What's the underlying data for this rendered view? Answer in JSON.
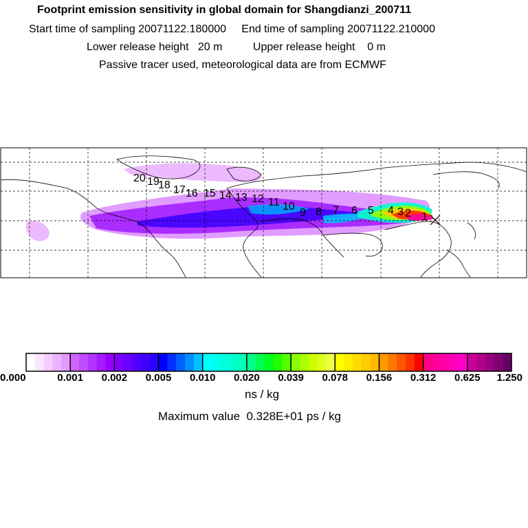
{
  "header": {
    "title": "Footprint emission sensitivity in global domain for Shangdianzi_200711",
    "start_label": "Start time of sampling",
    "start_value": "20071122.180000",
    "end_label": "End time of sampling",
    "end_value": "20071122.210000",
    "lower_label": "Lower release height",
    "lower_value": "20 m",
    "upper_label": "Upper release height",
    "upper_value": "0 m",
    "note": "Passive tracer used, meteorological data are from ECMWF"
  },
  "chart_data": {
    "type": "heatmap",
    "title": "Footprint emission sensitivity in global domain for Shangdianzi_200711",
    "colorbar": {
      "tick_labels": [
        "0.000",
        "0.001",
        "0.002",
        "0.005",
        "0.010",
        "0.020",
        "0.039",
        "0.078",
        "0.156",
        "0.312",
        "0.625",
        "1.250"
      ],
      "unit": "ns / kg",
      "colors": [
        "#ffffff",
        "#fbe6ff",
        "#f4ccff",
        "#ecb2ff",
        "#e499ff",
        "#cc66ff",
        "#c04cff",
        "#b333ff",
        "#a61aff",
        "#9900ff",
        "#7f00ff",
        "#6a00ff",
        "#5500ff",
        "#4000ff",
        "#2b00ff",
        "#0000ff",
        "#0030ff",
        "#0060ff",
        "#0090ff",
        "#00c0ff",
        "#00ffff",
        "#00ffee",
        "#00ffdd",
        "#00ffcc",
        "#00ffbb",
        "#00ff88",
        "#00ff55",
        "#00ff22",
        "#22ff00",
        "#55ff00",
        "#88ff00",
        "#aaff00",
        "#ccff00",
        "#ddff22",
        "#eeff44",
        "#ffff00",
        "#ffee00",
        "#ffdd00",
        "#ffcc00",
        "#ffbb00",
        "#ff9900",
        "#ff7700",
        "#ff5500",
        "#ff3300",
        "#ff0000",
        "#ff0088",
        "#ff0099",
        "#ff00aa",
        "#ff00bb",
        "#ff00cc",
        "#cc0099",
        "#b3008c",
        "#99007f",
        "#800073",
        "#660066"
      ]
    },
    "max_value_text": "Maximum value  0.328E+01 ps / kg",
    "trajectory_labels": [
      "1",
      "2",
      "3",
      "4",
      "5",
      "6",
      "7",
      "8",
      "9",
      "10",
      "11",
      "12",
      "13",
      "14",
      "15",
      "16",
      "17",
      "18",
      "19",
      "20"
    ],
    "receptor": "Shangdianzi"
  }
}
